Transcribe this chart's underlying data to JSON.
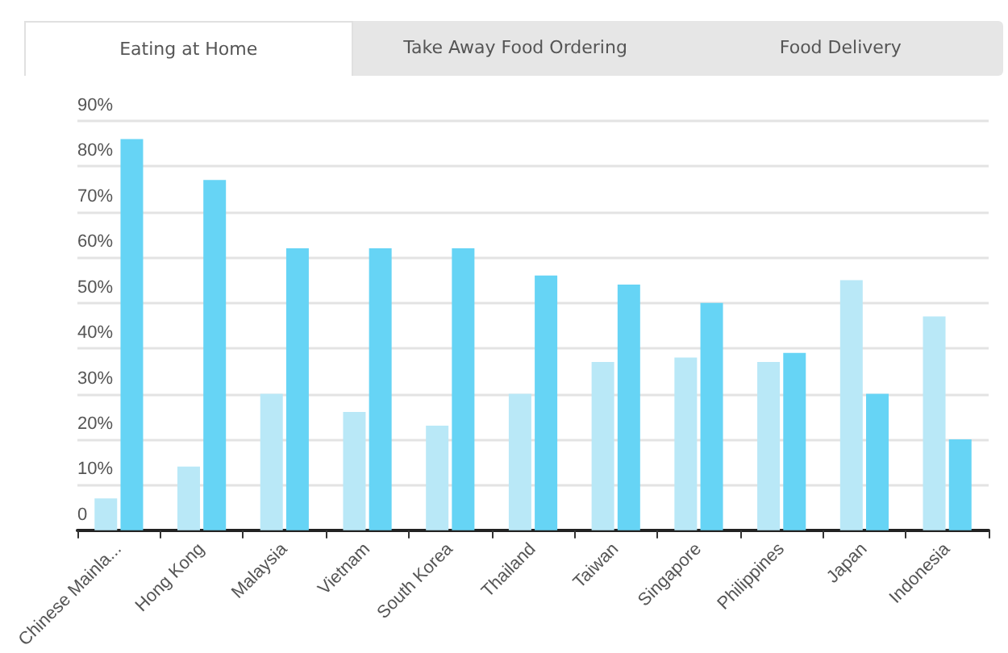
{
  "chart_data": {
    "type": "bar",
    "annotations": [
      "Eating at Home",
      "Take Away Food Ordering",
      "Food Delivery"
    ],
    "categories": [
      "Chinese Mainla...",
      "Hong Kong",
      "Malaysia",
      "Vietnam",
      "South Korea",
      "Thailand",
      "Taiwan",
      "Singapore",
      "Philippines",
      "Japan",
      "Indonesia"
    ],
    "series": [
      {
        "color": "#b9e8f7",
        "values": [
          7,
          14,
          30,
          26,
          23,
          30,
          37,
          38,
          37,
          55,
          47
        ]
      },
      {
        "color": "#66d4f5",
        "values": [
          86,
          77,
          62,
          62,
          62,
          56,
          54,
          50,
          39,
          30,
          20
        ]
      }
    ],
    "ylim": [
      0,
      90
    ],
    "yticks": [
      0,
      {
        "value": 10,
        "label": "10%"
      },
      {
        "value": 20,
        "label": "20%"
      },
      {
        "value": 30,
        "label": "30%"
      },
      {
        "value": 40,
        "label": "40%"
      },
      {
        "value": 50,
        "label": "50%"
      },
      {
        "value": 60,
        "label": "60%"
      },
      {
        "value": 70,
        "label": "70%"
      },
      {
        "value": 80,
        "label": "80%"
      },
      {
        "value": 90,
        "label": "90%"
      }
    ],
    "grid": "y"
  }
}
